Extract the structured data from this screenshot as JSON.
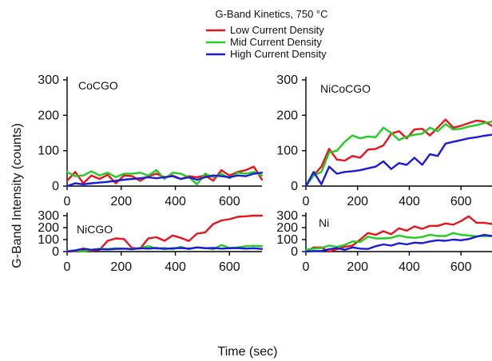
{
  "legend": {
    "title": "G-Band Kinetics, 750 °C",
    "entries": [
      {
        "name": "Low Current Density",
        "color": "#e8141c"
      },
      {
        "name": "Mid Current Density",
        "color": "#22cc22"
      },
      {
        "name": "High Current Density",
        "color": "#1a1ad8"
      }
    ]
  },
  "axes": {
    "ylabel": "G-Band Intensity (counts)",
    "xlabel": "Time (sec)"
  },
  "chart_data": [
    {
      "type": "line",
      "panel": "CoCGO",
      "xlim": [
        0,
        720
      ],
      "ylim": [
        0,
        300
      ],
      "xticks": [
        0,
        200,
        400,
        600
      ],
      "yticks": [
        0,
        100,
        200,
        300
      ],
      "series": [
        {
          "name": "Low Current Density",
          "color": "#e8141c",
          "x": [
            0,
            30,
            60,
            90,
            120,
            150,
            180,
            210,
            240,
            270,
            300,
            330,
            360,
            390,
            420,
            450,
            480,
            510,
            540,
            570,
            600,
            630,
            660,
            690,
            720
          ],
          "y": [
            15,
            40,
            8,
            30,
            20,
            32,
            8,
            30,
            28,
            15,
            28,
            35,
            25,
            30,
            20,
            28,
            25,
            30,
            15,
            45,
            30,
            40,
            45,
            55,
            18
          ]
        },
        {
          "name": "Mid Current Density",
          "color": "#22cc22",
          "x": [
            0,
            30,
            60,
            90,
            120,
            150,
            180,
            210,
            240,
            270,
            300,
            330,
            360,
            390,
            420,
            450,
            480,
            510,
            540,
            570,
            600,
            630,
            660,
            690,
            720
          ],
          "y": [
            40,
            28,
            30,
            42,
            30,
            38,
            25,
            35,
            35,
            38,
            30,
            45,
            20,
            38,
            35,
            25,
            5,
            35,
            25,
            35,
            22,
            38,
            35,
            40,
            30
          ]
        },
        {
          "name": "High Current Density",
          "color": "#1a1ad8",
          "x": [
            0,
            30,
            60,
            90,
            120,
            150,
            180,
            210,
            240,
            270,
            300,
            330,
            360,
            390,
            420,
            450,
            480,
            510,
            540,
            570,
            600,
            630,
            660,
            690,
            720
          ],
          "y": [
            0,
            8,
            5,
            8,
            10,
            12,
            15,
            18,
            20,
            22,
            25,
            22,
            25,
            28,
            20,
            25,
            18,
            25,
            30,
            28,
            25,
            30,
            28,
            35,
            38
          ]
        }
      ]
    },
    {
      "type": "line",
      "panel": "NiCoCGO",
      "xlim": [
        0,
        720
      ],
      "ylim": [
        0,
        300
      ],
      "xticks": [
        0,
        200,
        400,
        600
      ],
      "yticks": [
        0,
        100,
        200,
        300
      ],
      "series": [
        {
          "name": "Low Current Density",
          "color": "#e8141c",
          "x": [
            0,
            30,
            60,
            90,
            120,
            150,
            180,
            210,
            240,
            270,
            300,
            330,
            360,
            390,
            420,
            450,
            480,
            510,
            540,
            570,
            600,
            630,
            660,
            690,
            720
          ],
          "y": [
            0,
            30,
            55,
            105,
            75,
            72,
            85,
            80,
            103,
            105,
            115,
            148,
            155,
            135,
            160,
            162,
            143,
            165,
            188,
            165,
            170,
            178,
            185,
            182,
            170
          ]
        },
        {
          "name": "Mid Current Density",
          "color": "#22cc22",
          "x": [
            0,
            30,
            60,
            90,
            120,
            150,
            180,
            210,
            240,
            270,
            300,
            330,
            360,
            390,
            420,
            450,
            480,
            510,
            540,
            570,
            600,
            630,
            660,
            690,
            720
          ],
          "y": [
            0,
            30,
            40,
            95,
            100,
            125,
            143,
            135,
            140,
            138,
            165,
            150,
            130,
            140,
            145,
            148,
            165,
            155,
            175,
            160,
            162,
            168,
            172,
            178,
            182
          ]
        },
        {
          "name": "High Current Density",
          "color": "#1a1ad8",
          "x": [
            0,
            30,
            60,
            90,
            120,
            150,
            180,
            210,
            240,
            270,
            300,
            330,
            360,
            390,
            420,
            450,
            480,
            510,
            540,
            570,
            600,
            630,
            660,
            690,
            720
          ],
          "y": [
            0,
            40,
            5,
            55,
            35,
            40,
            42,
            45,
            50,
            55,
            70,
            48,
            65,
            60,
            80,
            60,
            90,
            85,
            120,
            125,
            130,
            135,
            138,
            142,
            145
          ]
        }
      ]
    },
    {
      "type": "line",
      "panel": "NiCGO",
      "xlim": [
        0,
        720
      ],
      "ylim": [
        0,
        300
      ],
      "xticks": [
        0,
        200,
        400,
        600
      ],
      "yticks": [
        0,
        100,
        200,
        300
      ],
      "series": [
        {
          "name": "Low Current Density",
          "color": "#e8141c",
          "x": [
            0,
            30,
            60,
            90,
            120,
            150,
            180,
            210,
            240,
            270,
            300,
            330,
            360,
            390,
            420,
            450,
            480,
            510,
            540,
            570,
            600,
            630,
            660,
            690,
            720
          ],
          "y": [
            0,
            5,
            15,
            8,
            15,
            90,
            110,
            105,
            30,
            25,
            110,
            120,
            90,
            135,
            115,
            88,
            150,
            160,
            230,
            260,
            270,
            290,
            295,
            300,
            300
          ]
        },
        {
          "name": "Mid Current Density",
          "color": "#22cc22",
          "x": [
            0,
            30,
            60,
            90,
            120,
            150,
            180,
            210,
            240,
            270,
            300,
            330,
            360,
            390,
            420,
            450,
            480,
            510,
            540,
            570,
            600,
            630,
            660,
            690,
            720
          ],
          "y": [
            5,
            10,
            0,
            15,
            25,
            20,
            28,
            25,
            22,
            30,
            45,
            25,
            30,
            20,
            40,
            20,
            35,
            30,
            20,
            55,
            30,
            35,
            45,
            48,
            45
          ]
        },
        {
          "name": "High Current Density",
          "color": "#1a1ad8",
          "x": [
            0,
            30,
            60,
            90,
            120,
            150,
            180,
            210,
            240,
            270,
            300,
            330,
            360,
            390,
            420,
            450,
            480,
            510,
            540,
            570,
            600,
            630,
            660,
            690,
            720
          ],
          "y": [
            0,
            10,
            25,
            15,
            20,
            18,
            22,
            25,
            20,
            28,
            25,
            30,
            22,
            28,
            30,
            25,
            35,
            28,
            30,
            25,
            28,
            30,
            25,
            28,
            22
          ]
        }
      ]
    },
    {
      "type": "line",
      "panel": "Ni",
      "xlim": [
        0,
        720
      ],
      "ylim": [
        0,
        300
      ],
      "xticks": [
        0,
        200,
        400,
        600
      ],
      "yticks": [
        0,
        100,
        200,
        300
      ],
      "series": [
        {
          "name": "Low Current Density",
          "color": "#e8141c",
          "x": [
            0,
            30,
            60,
            90,
            120,
            150,
            180,
            210,
            240,
            270,
            300,
            330,
            360,
            390,
            420,
            450,
            480,
            510,
            540,
            570,
            600,
            630,
            660,
            690,
            720
          ],
          "y": [
            0,
            35,
            35,
            0,
            20,
            40,
            50,
            100,
            155,
            140,
            170,
            145,
            195,
            175,
            210,
            190,
            215,
            215,
            235,
            225,
            255,
            295,
            240,
            240,
            230
          ]
        },
        {
          "name": "Mid Current Density",
          "color": "#22cc22",
          "x": [
            0,
            30,
            60,
            90,
            120,
            150,
            180,
            210,
            240,
            270,
            300,
            330,
            360,
            390,
            420,
            450,
            480,
            510,
            540,
            570,
            600,
            630,
            660,
            690,
            720
          ],
          "y": [
            15,
            25,
            30,
            50,
            40,
            55,
            85,
            80,
            125,
            110,
            110,
            115,
            135,
            120,
            115,
            122,
            140,
            130,
            130,
            155,
            140,
            135,
            128,
            130,
            128
          ]
        },
        {
          "name": "High Current Density",
          "color": "#1a1ad8",
          "x": [
            0,
            30,
            60,
            90,
            120,
            150,
            180,
            210,
            240,
            270,
            300,
            330,
            360,
            390,
            420,
            450,
            480,
            510,
            540,
            570,
            600,
            630,
            660,
            690,
            720
          ],
          "y": [
            0,
            5,
            5,
            20,
            30,
            15,
            35,
            25,
            22,
            45,
            60,
            50,
            70,
            60,
            75,
            70,
            85,
            95,
            90,
            100,
            95,
            105,
            125,
            140,
            130
          ]
        }
      ]
    }
  ]
}
